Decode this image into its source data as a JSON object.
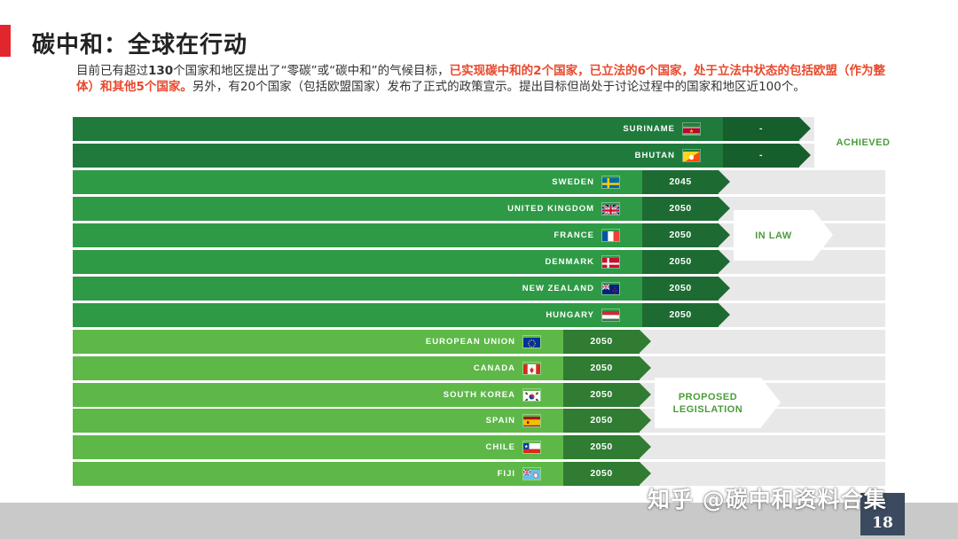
{
  "title": "碳中和：全球在行动",
  "intro": {
    "part1": "目前已有超过",
    "bold1": "130",
    "part2": "个国家和地区提出了“零碳”或“碳中和”的气候目标，",
    "highlight": "已实现碳中和的2个国家，已立法的6个国家，处于立法中状态的包括欧盟（作为整体）和其他5个国家。",
    "part3": "另外，有20个国家（包括欧盟国家）发布了正式的政策宣示。提出目标但尚处于讨论过程中的国家和地区近100个。"
  },
  "colors": {
    "achieved": "#1f7a3c",
    "in_law": "#2e9a45",
    "proposed": "#5db848",
    "track": "#e8e8e8",
    "accent_red": "#e8492d"
  },
  "groups": [
    {
      "key": "achieved",
      "label": "ACHIEVED",
      "rows": [
        0,
        1
      ]
    },
    {
      "key": "in_law",
      "label": "IN LAW",
      "rows": [
        2,
        3,
        4,
        5,
        6,
        7
      ]
    },
    {
      "key": "proposed",
      "label": "PROPOSED\nLEGISLATION",
      "rows": [
        8,
        9,
        10,
        11,
        12,
        13
      ]
    }
  ],
  "countries": [
    {
      "name": "SURINAME",
      "flag": "flag-suriname",
      "year": "-",
      "group": "achieved"
    },
    {
      "name": "BHUTAN",
      "flag": "flag-bhutan",
      "year": "-",
      "group": "achieved"
    },
    {
      "name": "SWEDEN",
      "flag": "flag-sweden",
      "year": "2045",
      "group": "in_law"
    },
    {
      "name": "UNITED KINGDOM",
      "flag": "flag-uk",
      "year": "2050",
      "group": "in_law"
    },
    {
      "name": "FRANCE",
      "flag": "flag-france",
      "year": "2050",
      "group": "in_law"
    },
    {
      "name": "DENMARK",
      "flag": "flag-denmark",
      "year": "2050",
      "group": "in_law"
    },
    {
      "name": "NEW ZEALAND",
      "flag": "flag-new-zealand",
      "year": "2050",
      "group": "in_law"
    },
    {
      "name": "HUNGARY",
      "flag": "flag-hungary",
      "year": "2050",
      "group": "in_law"
    },
    {
      "name": "EUROPEAN UNION",
      "flag": "flag-eu",
      "year": "2050",
      "group": "proposed"
    },
    {
      "name": "CANADA",
      "flag": "flag-canada",
      "year": "2050",
      "group": "proposed"
    },
    {
      "name": "SOUTH KOREA",
      "flag": "flag-south-korea",
      "year": "2050",
      "group": "proposed"
    },
    {
      "name": "SPAIN",
      "flag": "flag-spain",
      "year": "2050",
      "group": "proposed"
    },
    {
      "name": "CHILE",
      "flag": "flag-chile",
      "year": "2050",
      "group": "proposed"
    },
    {
      "name": "FIJI",
      "flag": "flag-fiji",
      "year": "2050",
      "group": "proposed"
    }
  ],
  "page_number": "18",
  "watermark": "知乎 @碳中和资料合集"
}
